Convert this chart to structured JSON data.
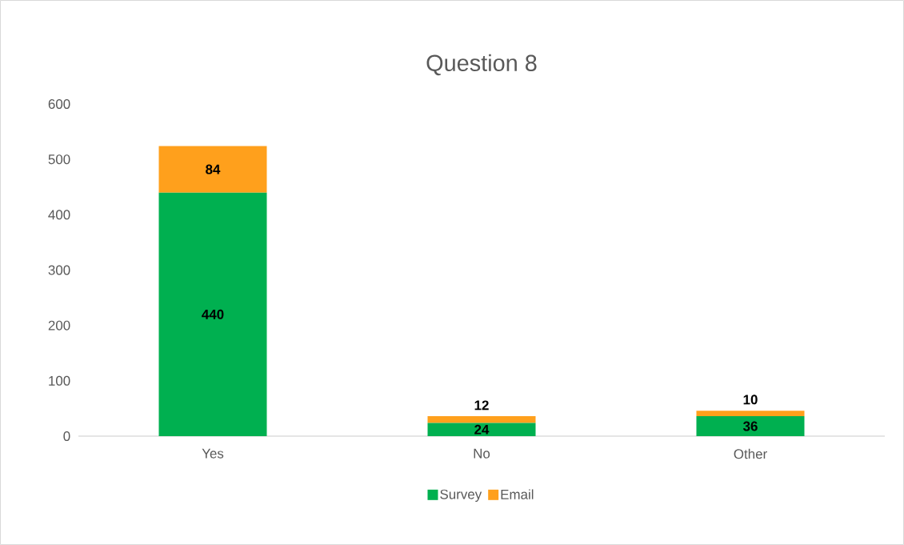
{
  "chart_data": {
    "type": "bar",
    "title": "Question 8",
    "stacked": true,
    "categories": [
      "Yes",
      "No",
      "Other"
    ],
    "series": [
      {
        "name": "Survey",
        "color": "#00b050",
        "values": [
          440,
          24,
          36
        ]
      },
      {
        "name": "Email",
        "color": "#ffa01c",
        "values": [
          84,
          12,
          10
        ]
      }
    ],
    "ylim": [
      0,
      600
    ],
    "yticks": [
      0,
      100,
      200,
      300,
      400,
      500,
      600
    ],
    "data_labels": true,
    "legend": "bottom",
    "grid": false
  }
}
